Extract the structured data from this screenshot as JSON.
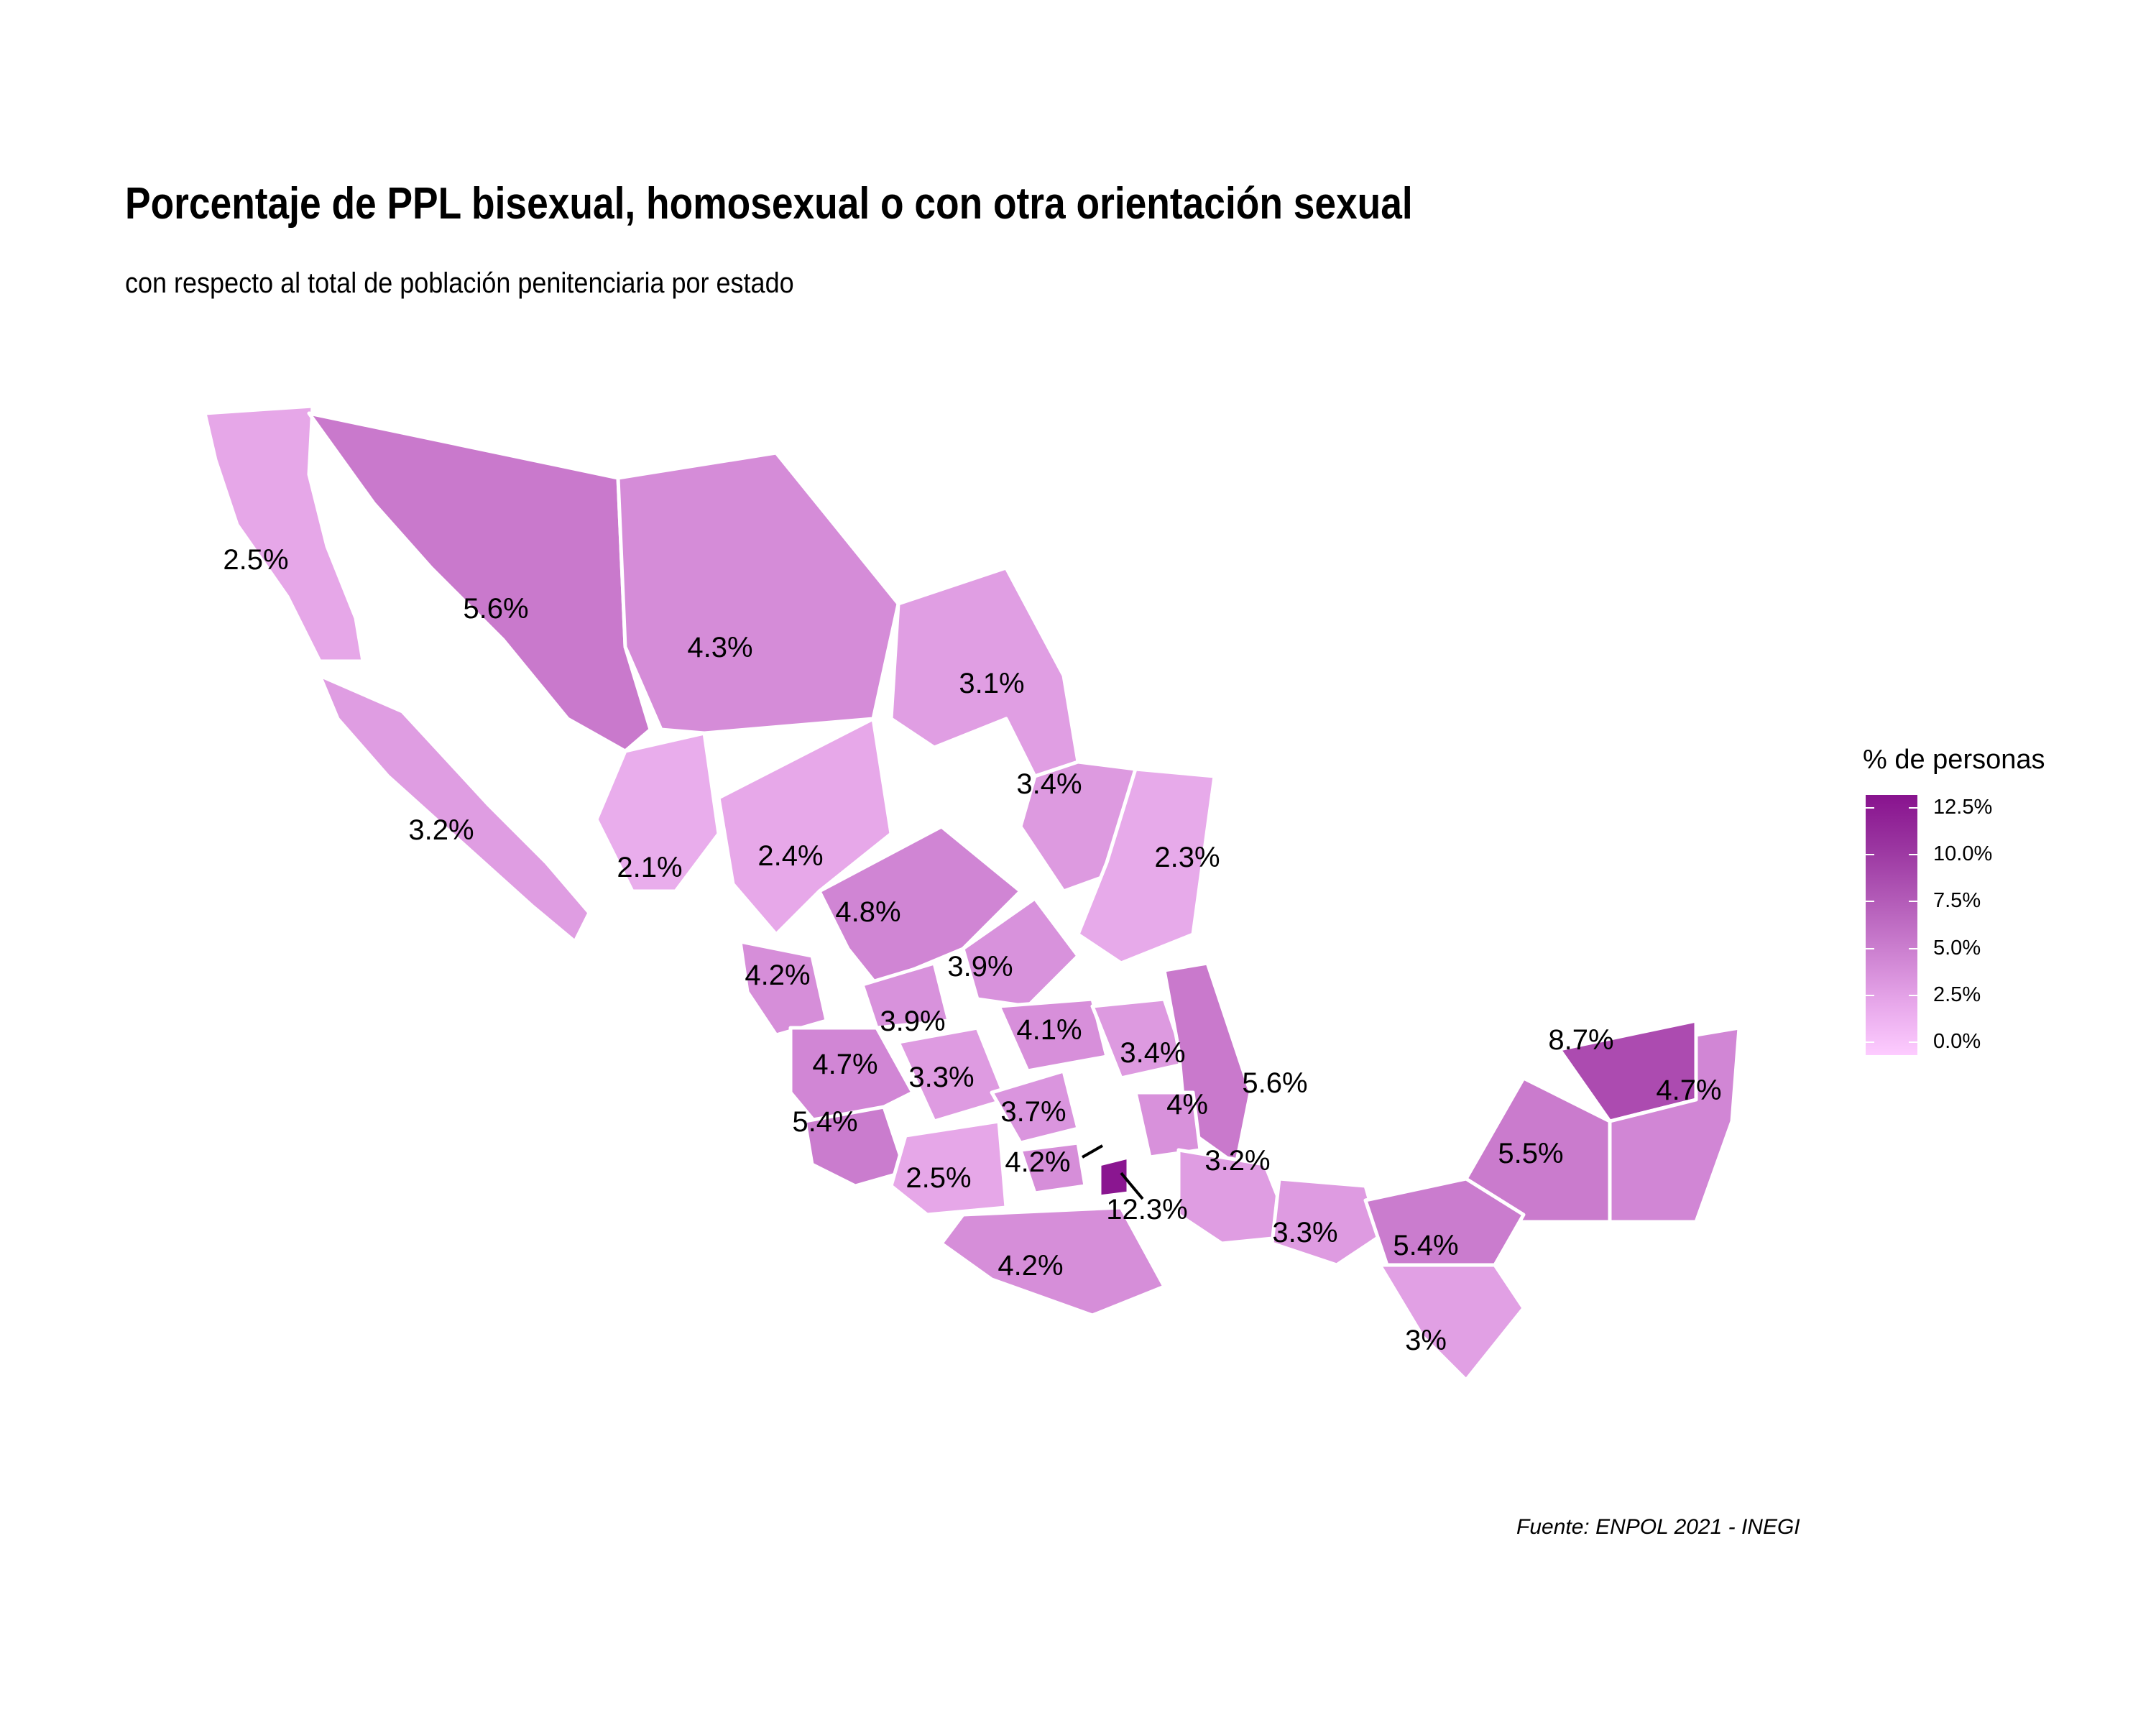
{
  "title": "Porcentaje de PPL bisexual, homosexual o con otra orientación sexual",
  "subtitle": "con respecto al total de población penitenciaria por estado",
  "caption": "Fuente: ENPOL 2021 - INEGI",
  "legend": {
    "title": "% de personas",
    "ticks": [
      "12.5%",
      "10.0%",
      "7.5%",
      "5.0%",
      "2.5%",
      "0.0%"
    ],
    "low_color": "#fdccff",
    "high_color": "#88138e"
  },
  "chart_data": {
    "type": "choropleth",
    "region": "Mexico",
    "scale": {
      "min": 0,
      "max": 12.5,
      "unit": "%"
    },
    "values": [
      {
        "label": "2.5%",
        "value": 2.5
      },
      {
        "label": "5.6%",
        "value": 5.6
      },
      {
        "label": "4.3%",
        "value": 4.3
      },
      {
        "label": "3.1%",
        "value": 3.1
      },
      {
        "label": "3.4%",
        "value": 3.4
      },
      {
        "label": "3.2%",
        "value": 3.2
      },
      {
        "label": "2.1%",
        "value": 2.1
      },
      {
        "label": "2.4%",
        "value": 2.4
      },
      {
        "label": "2.3%",
        "value": 2.3
      },
      {
        "label": "4.8%",
        "value": 4.8
      },
      {
        "label": "4.2%",
        "value": 4.2
      },
      {
        "label": "3.9%",
        "value": 3.9
      },
      {
        "label": "3.9%",
        "value": 3.9
      },
      {
        "label": "4.1%",
        "value": 4.1
      },
      {
        "label": "3.4%",
        "value": 3.4
      },
      {
        "label": "4.7%",
        "value": 4.7
      },
      {
        "label": "3.3%",
        "value": 3.3
      },
      {
        "label": "5.6%",
        "value": 5.6
      },
      {
        "label": "3.7%",
        "value": 3.7
      },
      {
        "label": "4%",
        "value": 4.0
      },
      {
        "label": "5.4%",
        "value": 5.4
      },
      {
        "label": "4.2%",
        "value": 4.2
      },
      {
        "label": "3.2%",
        "value": 3.2
      },
      {
        "label": "2.5%",
        "value": 2.5
      },
      {
        "label": "12.3%",
        "value": 12.3
      },
      {
        "label": "8.7%",
        "value": 8.7
      },
      {
        "label": "4.7%",
        "value": 4.7
      },
      {
        "label": "5.5%",
        "value": 5.5
      },
      {
        "label": "3.3%",
        "value": 3.3
      },
      {
        "label": "5.4%",
        "value": 5.4
      },
      {
        "label": "4.2%",
        "value": 4.2
      },
      {
        "label": "3%",
        "value": 3.0
      }
    ]
  }
}
